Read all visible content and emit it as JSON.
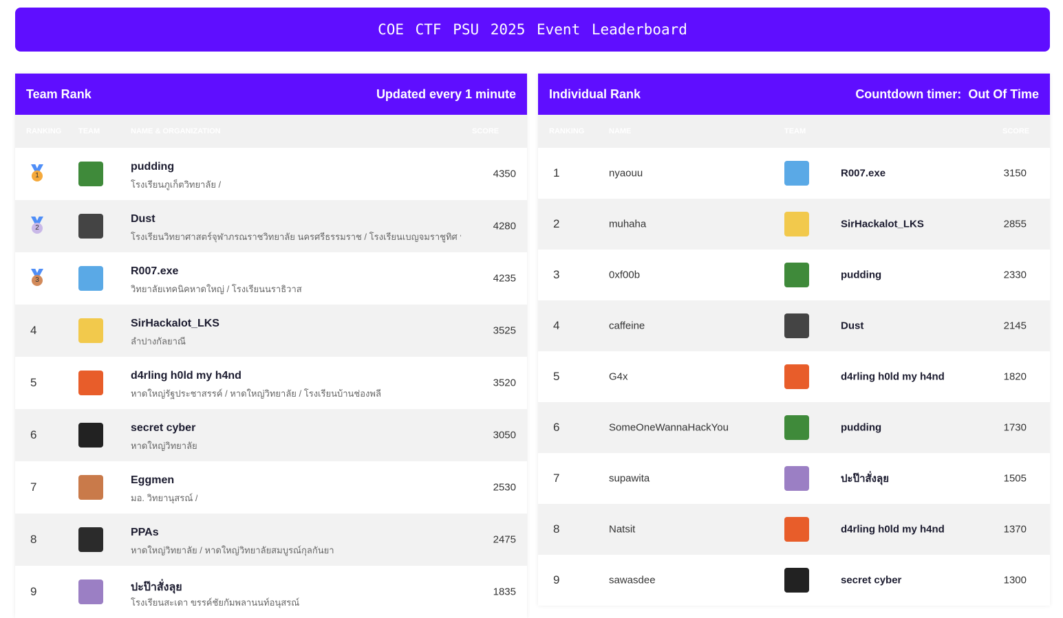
{
  "title": "COE CTF PSU 2025 Event Leaderboard",
  "colors": {
    "accent": "#5f0eff",
    "gold": "#f5a93b",
    "silver": "#c9b8e8",
    "bronze": "#d28a5a"
  },
  "team_rank": {
    "title": "Team Rank",
    "updated": "Updated every 1 minute",
    "columns": [
      "RANKING",
      "TEAM",
      "NAME & ORGANIZATION",
      "SCORE"
    ],
    "rows": [
      {
        "rank": "1",
        "medal": "gold-medal-icon",
        "name": "pudding",
        "org": "โรงเรียนภูเก็ตวิทยาลัย /",
        "score": "4350",
        "avatar": "#3f8a3a"
      },
      {
        "rank": "2",
        "medal": "silver-medal-icon",
        "name": "Dust",
        "org": "โรงเรียนวิทยาศาสตร์จุฬาภรณราชวิทยาลัย นครศรีธรรมราช / โรงเรียนเบญจมราชูทิศ นครศรีธรรมราช",
        "score": "4280",
        "avatar": "#444444"
      },
      {
        "rank": "3",
        "medal": "bronze-medal-icon",
        "name": "R007.exe",
        "org": "วิทยาลัยเทคนิคหาดใหญ่ / โรงเรียนนราธิวาส",
        "score": "4235",
        "avatar": "#5aa9e6"
      },
      {
        "rank": "4",
        "name": "SirHackalot_LKS",
        "org": "ลำปางกัลยาณี",
        "score": "3525",
        "avatar": "#f2c94c"
      },
      {
        "rank": "5",
        "name": "d4rling h0ld my h4nd",
        "org": "หาดใหญ่รัฐประชาสรรค์ / หาดใหญ่วิทยาลัย / โรงเรียนบ้านช่องพลี",
        "score": "3520",
        "avatar": "#e85d2a"
      },
      {
        "rank": "6",
        "name": "secret cyber",
        "org": "หาดใหญ่วิทยาลัย",
        "score": "3050",
        "avatar": "#222222"
      },
      {
        "rank": "7",
        "name": "Eggmen",
        "org": "มอ. วิทยานุสรณ์ /",
        "score": "2530",
        "avatar": "#c97a4a"
      },
      {
        "rank": "8",
        "name": "PPAs",
        "org": "หาดใหญ่วิทยาลัย / หาดใหญ่วิทยาลัยสมบูรณ์กุลกันยา",
        "score": "2475",
        "avatar": "#2b2b2b"
      },
      {
        "rank": "9",
        "name": "ปะป๊าสั่งลุย",
        "org": "โรงเรียนสะเดา ขรรค์ชัยกัมพลานนท์อนุสรณ์",
        "score": "1835",
        "avatar": "#9b7fc4"
      }
    ]
  },
  "individual_rank": {
    "title": "Individual Rank",
    "countdown_label": "Countdown timer:",
    "countdown_value": "Out Of Time",
    "columns": [
      "RANKING",
      "NAME",
      "TEAM",
      "SCORE"
    ],
    "rows": [
      {
        "rank": "1",
        "name": "nyaouu",
        "team": "R007.exe",
        "score": "3150",
        "avatar": "#5aa9e6"
      },
      {
        "rank": "2",
        "name": "muhaha",
        "team": "SirHackalot_LKS",
        "score": "2855",
        "avatar": "#f2c94c"
      },
      {
        "rank": "3",
        "name": "0xf00b",
        "team": "pudding",
        "score": "2330",
        "avatar": "#3f8a3a"
      },
      {
        "rank": "4",
        "name": "caffeine",
        "team": "Dust",
        "score": "2145",
        "avatar": "#444444"
      },
      {
        "rank": "5",
        "name": "G4x",
        "team": "d4rling h0ld my h4nd",
        "score": "1820",
        "avatar": "#e85d2a"
      },
      {
        "rank": "6",
        "name": "SomeOneWannaHackYou",
        "team": "pudding",
        "score": "1730",
        "avatar": "#3f8a3a"
      },
      {
        "rank": "7",
        "name": "supawita",
        "team": "ปะป๊าสั่งลุย",
        "score": "1505",
        "avatar": "#9b7fc4"
      },
      {
        "rank": "8",
        "name": "Natsit",
        "team": "d4rling h0ld my h4nd",
        "score": "1370",
        "avatar": "#e85d2a"
      },
      {
        "rank": "9",
        "name": "sawasdee",
        "team": "secret cyber",
        "score": "1300",
        "avatar": "#222222"
      }
    ]
  }
}
